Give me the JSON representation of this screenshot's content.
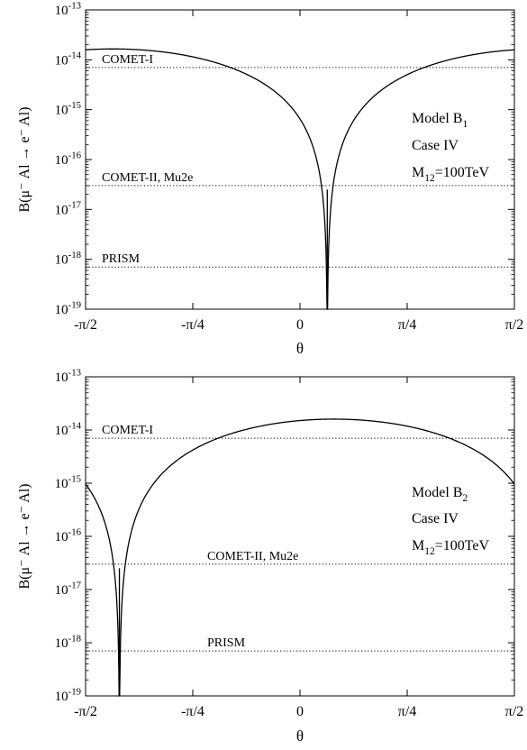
{
  "chart_data": [
    {
      "type": "line",
      "xlabel": "θ",
      "ylabel": "B(μ⁻ Al → e⁻ Al)",
      "ylog": true,
      "xlim": [
        -1.5708,
        1.5708
      ],
      "ylim_exp": [
        -19,
        -13
      ],
      "x_ticks": [
        {
          "v": -1.5708,
          "label": "-π/2"
        },
        {
          "v": -0.7854,
          "label": "-π/4"
        },
        {
          "v": 0,
          "label": "0"
        },
        {
          "v": 0.7854,
          "label": "π/4"
        },
        {
          "v": 1.5708,
          "label": "π/2"
        }
      ],
      "y_ticks": [
        {
          "exp": -13,
          "base": "10",
          "sup": "-13"
        },
        {
          "exp": -14,
          "base": "10",
          "sup": "-14"
        },
        {
          "exp": -15,
          "base": "10",
          "sup": "-15"
        },
        {
          "exp": -16,
          "base": "10",
          "sup": "-16"
        },
        {
          "exp": -17,
          "base": "10",
          "sup": "-17"
        },
        {
          "exp": -18,
          "base": "10",
          "sup": "-18"
        },
        {
          "exp": -19,
          "base": "10",
          "sup": "-19"
        }
      ],
      "annotation": {
        "model": "Model B",
        "model_sub": "1",
        "case": "Case IV",
        "mass_prefix": "M",
        "mass_sub": "12",
        "mass_value": "=100TeV"
      },
      "limits": [
        {
          "name": "COMET-I",
          "y": 7e-15
        },
        {
          "name": "COMET-II, Mu2e",
          "y": 3e-17
        },
        {
          "name": "PRISM",
          "y": 7e-19
        }
      ],
      "curve": {
        "form": "amp*sin^2(theta - zero)",
        "amp": 1.65e-14,
        "zero": 0.2,
        "x_start": -1.5708,
        "x_end": 1.5708
      },
      "series": [
        {
          "x": [
            -1.5708,
            -1.2,
            -0.8,
            -0.5,
            -0.2,
            0.0,
            0.15,
            0.2,
            0.25,
            0.4,
            0.7,
            1.0,
            1.3,
            1.5708
          ],
          "y": [
            1.6e-14,
            1.6e-14,
            1.1e-14,
            7e-15,
            2.6e-15,
            6.5e-16,
            4.1e-17,
            1e-19,
            4.1e-17,
            6.5e-16,
            3.8e-15,
            9.6e-15,
            1.5e-14,
            1.6e-14
          ]
        }
      ]
    },
    {
      "type": "line",
      "xlabel": "θ",
      "ylabel": "B(μ⁻ Al → e⁻ Al)",
      "ylog": true,
      "xlim": [
        -1.5708,
        1.5708
      ],
      "ylim_exp": [
        -19,
        -13
      ],
      "x_ticks": [
        {
          "v": -1.5708,
          "label": "-π/2"
        },
        {
          "v": -0.7854,
          "label": "-π/4"
        },
        {
          "v": 0,
          "label": "0"
        },
        {
          "v": 0.7854,
          "label": "π/4"
        },
        {
          "v": 1.5708,
          "label": "π/2"
        }
      ],
      "y_ticks": [
        {
          "exp": -13,
          "base": "10",
          "sup": "-13"
        },
        {
          "exp": -14,
          "base": "10",
          "sup": "-14"
        },
        {
          "exp": -15,
          "base": "10",
          "sup": "-15"
        },
        {
          "exp": -16,
          "base": "10",
          "sup": "-16"
        },
        {
          "exp": -17,
          "base": "10",
          "sup": "-17"
        },
        {
          "exp": -18,
          "base": "10",
          "sup": "-18"
        },
        {
          "exp": -19,
          "base": "10",
          "sup": "-19"
        }
      ],
      "annotation": {
        "model": "Model B",
        "model_sub": "2",
        "case": "Case IV",
        "mass_prefix": "M",
        "mass_sub": "12",
        "mass_value": "=100TeV"
      },
      "limits": [
        {
          "name": "COMET-I",
          "y": 7e-15
        },
        {
          "name": "COMET-II, Mu2e",
          "y": 3e-17
        },
        {
          "name": "PRISM",
          "y": 7e-19
        }
      ],
      "curve": {
        "form": "amp*sin^2(theta - zero)",
        "amp": 1.6e-14,
        "zero": -1.323,
        "x_start": -1.5708,
        "x_end": 1.5708
      },
      "series": [
        {
          "x": [
            -1.5708,
            -1.45,
            -1.35,
            -1.323,
            -1.3,
            -1.1,
            -0.8,
            -0.4,
            0.0,
            0.25,
            0.6,
            1.0,
            1.3,
            1.5708
          ],
          "y": [
            9.3e-16,
            2.4e-16,
            1.2e-17,
            1e-19,
            8.5e-18,
            7.8e-16,
            4.1e-15,
            1.06e-14,
            1.55e-14,
            1.6e-14,
            1.42e-14,
            9.3e-15,
            4.7e-15,
            9.3e-16
          ]
        }
      ]
    }
  ]
}
